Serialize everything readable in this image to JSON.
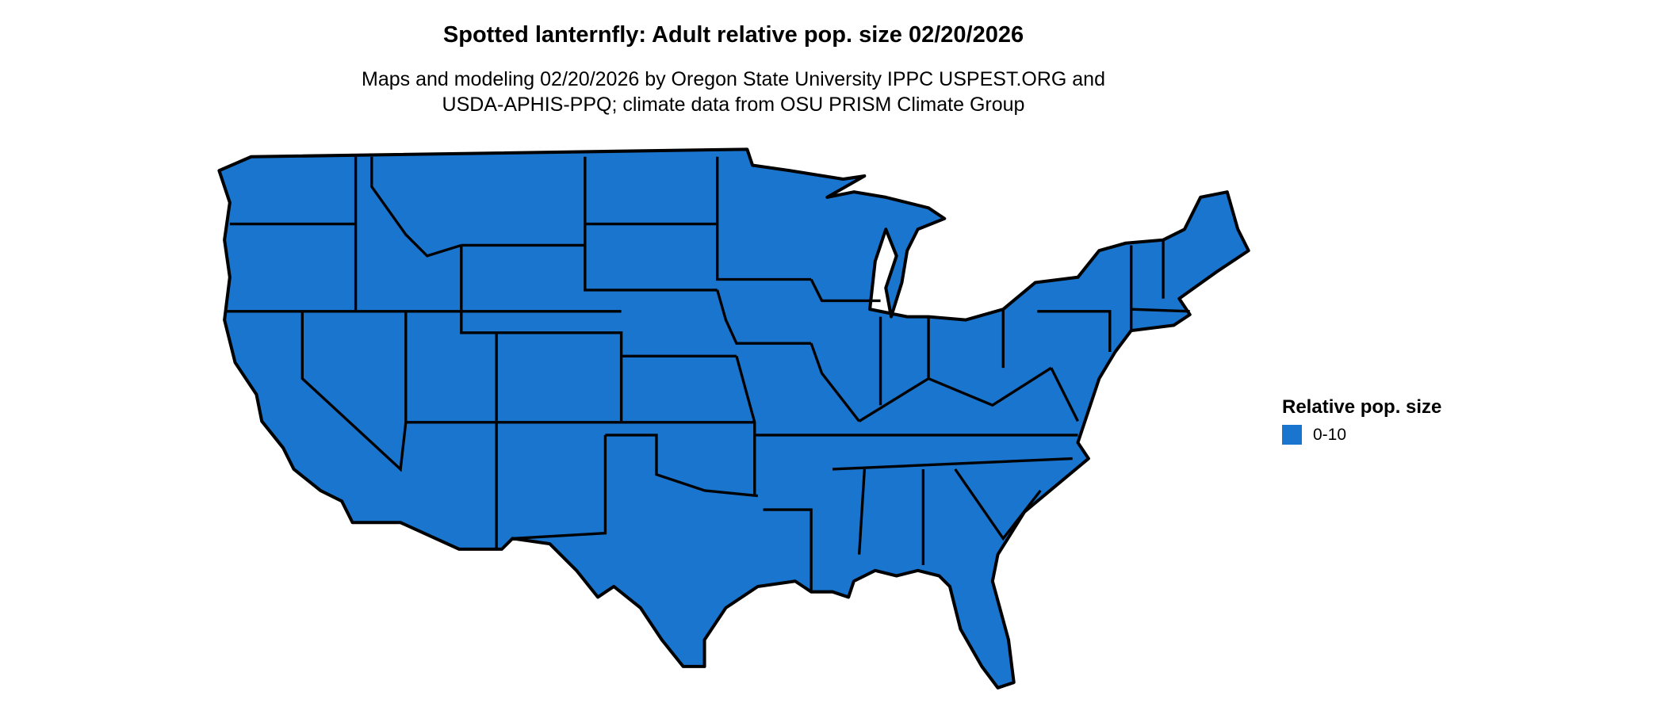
{
  "title": "Spotted lanternfly: Adult relative pop. size 02/20/2026",
  "subtitle_lines": [
    "Maps and modeling 02/20/2026 by Oregon State University IPPC USPEST.ORG and",
    "USDA-APHIS-PPQ; climate data from OSU PRISM Climate Group"
  ],
  "map": {
    "region": "Contiguous United States",
    "fill_color": "#1a75cf",
    "border_color": "#000000"
  },
  "legend": {
    "title": "Relative pop. size",
    "items": [
      {
        "label": "0-10",
        "color": "#1a75cf"
      }
    ]
  }
}
